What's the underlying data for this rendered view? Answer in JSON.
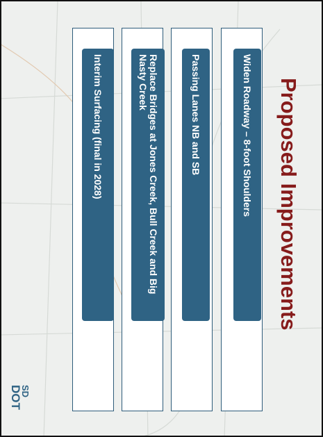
{
  "title": "Proposed Improvements",
  "items": [
    "Widen Roadway – 8-foot Shoulders",
    "Passing Lanes NB and SB",
    "Replace Bridges at Jones Creek, Bull Creek and Big Nasty Creek",
    "Interim Surfacing (final in 2028)"
  ],
  "logo": {
    "top": "SD",
    "bottom": "DOT"
  }
}
